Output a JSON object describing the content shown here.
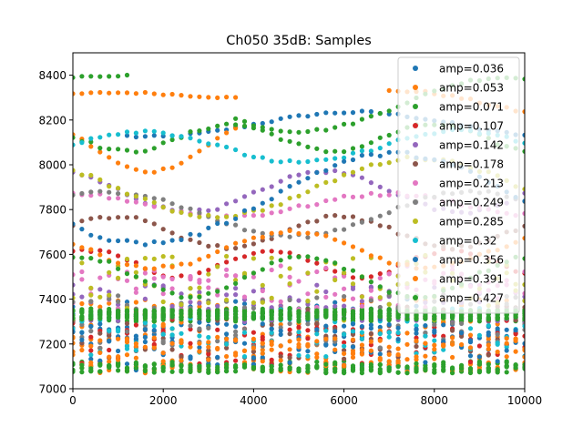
{
  "chart_data": {
    "type": "scatter",
    "title": "Ch050 35dB: Samples",
    "xlabel": "",
    "ylabel": "",
    "xlim": [
      0,
      10000
    ],
    "ylim": [
      7000,
      8500
    ],
    "xticks": [
      0,
      2000,
      4000,
      6000,
      8000,
      10000
    ],
    "yticks": [
      7000,
      7200,
      7400,
      7600,
      7800,
      8000,
      8200,
      8400
    ],
    "xtick_labels": [
      "0",
      "2000",
      "4000",
      "6000",
      "8000",
      "10000"
    ],
    "ytick_labels": [
      "7000",
      "7200",
      "7400",
      "7600",
      "7800",
      "8000",
      "8200",
      "8400"
    ],
    "grid": false,
    "legend_position": "top-right",
    "x_step": 200,
    "series": [
      {
        "name": "amp=0.036",
        "color": "#1f77b4",
        "tracks": [
          {
            "type": "wave",
            "base": 8180,
            "amp": 55,
            "period": 9000,
            "phase": 3.5,
            "xmin": 1200,
            "xmax": 10000,
            "noise": 6
          },
          {
            "type": "band",
            "center": 7290,
            "spread": 110,
            "n": 2
          }
        ]
      },
      {
        "name": "amp=0.053",
        "color": "#ff7f0e",
        "tracks": [
          {
            "type": "wave",
            "base": 8310,
            "amp": 12,
            "period": 6000,
            "phase": 0.5,
            "xmin": 0,
            "xmax": 3600,
            "noise": 4
          },
          {
            "type": "wave",
            "base": 8270,
            "amp": 60,
            "period": 8000,
            "phase": 2.2,
            "xmin": 7000,
            "xmax": 10000,
            "noise": 6
          },
          {
            "type": "wave",
            "base": 8080,
            "amp": 110,
            "period": 5000,
            "phase": 2.6,
            "xmin": 0,
            "xmax": 3600,
            "noise": 6
          },
          {
            "type": "band",
            "center": 7250,
            "spread": 150,
            "n": 3
          }
        ]
      },
      {
        "name": "amp=0.071",
        "color": "#2ca02c",
        "tracks": [
          {
            "type": "wave",
            "base": 8390,
            "amp": 10,
            "period": 6000,
            "phase": 0.0,
            "xmin": 0,
            "xmax": 1200,
            "noise": 4
          },
          {
            "type": "wave",
            "base": 8270,
            "amp": 120,
            "period": 9000,
            "phase": 1.2,
            "xmin": 3600,
            "xmax": 10000,
            "noise": 6
          },
          {
            "type": "wave",
            "base": 8120,
            "amp": 60,
            "period": 4500,
            "phase": 3.0,
            "xmin": 0,
            "xmax": 10000,
            "noise": 8
          },
          {
            "type": "band",
            "center": 7330,
            "spread": 30,
            "n": 6
          },
          {
            "type": "band",
            "center": 7100,
            "spread": 25,
            "n": 2
          }
        ]
      },
      {
        "name": "amp=0.107",
        "color": "#d62728",
        "tracks": [
          {
            "type": "wave",
            "base": 7560,
            "amp": 60,
            "period": 4000,
            "phase": 1.0,
            "xmin": 0,
            "xmax": 10000,
            "noise": 8
          },
          {
            "type": "band",
            "center": 7230,
            "spread": 130,
            "n": 2
          }
        ]
      },
      {
        "name": "amp=0.142",
        "color": "#9467bd",
        "tracks": [
          {
            "type": "wave",
            "base": 7880,
            "amp": 90,
            "period": 6000,
            "phase": 2.0,
            "xmin": 0,
            "xmax": 10000,
            "noise": 8
          },
          {
            "type": "band",
            "center": 7380,
            "spread": 90,
            "n": 2
          }
        ]
      },
      {
        "name": "amp=0.178",
        "color": "#8c564b",
        "tracks": [
          {
            "type": "wave",
            "base": 7700,
            "amp": 70,
            "period": 5000,
            "phase": 0.4,
            "xmin": 0,
            "xmax": 10000,
            "noise": 8
          },
          {
            "type": "band",
            "center": 7250,
            "spread": 120,
            "n": 2
          }
        ]
      },
      {
        "name": "amp=0.213",
        "color": "#e377c2",
        "tracks": [
          {
            "type": "wave",
            "base": 7820,
            "amp": 50,
            "period": 7000,
            "phase": 1.6,
            "xmin": 0,
            "xmax": 10000,
            "noise": 8
          },
          {
            "type": "band",
            "center": 7450,
            "spread": 100,
            "n": 2
          }
        ]
      },
      {
        "name": "amp=0.249",
        "color": "#7f7f7f",
        "tracks": [
          {
            "type": "wave",
            "base": 7780,
            "amp": 100,
            "period": 8000,
            "phase": 0.9,
            "xmin": 0,
            "xmax": 10000,
            "noise": 8
          },
          {
            "type": "band",
            "center": 7300,
            "spread": 120,
            "n": 2
          }
        ]
      },
      {
        "name": "amp=0.285",
        "color": "#bcbd22",
        "tracks": [
          {
            "type": "wave",
            "base": 7900,
            "amp": 130,
            "period": 9000,
            "phase": 2.5,
            "xmin": 0,
            "xmax": 10000,
            "noise": 8
          },
          {
            "type": "band",
            "center": 7450,
            "spread": 150,
            "n": 2
          }
        ]
      },
      {
        "name": "amp=0.32",
        "color": "#17becf",
        "tracks": [
          {
            "type": "wave",
            "base": 8080,
            "amp": 70,
            "period": 7000,
            "phase": 0.2,
            "xmin": 0,
            "xmax": 10000,
            "noise": 8
          },
          {
            "type": "band",
            "center": 7250,
            "spread": 110,
            "n": 2
          }
        ]
      },
      {
        "name": "amp=0.356",
        "color": "#1f77b4",
        "tracks": [
          {
            "type": "wave",
            "base": 7850,
            "amp": 200,
            "period": 11000,
            "phase": 3.8,
            "xmin": 0,
            "xmax": 10000,
            "noise": 10
          },
          {
            "type": "band",
            "center": 7200,
            "spread": 120,
            "n": 2
          }
        ]
      },
      {
        "name": "amp=0.391",
        "color": "#ff7f0e",
        "tracks": [
          {
            "type": "wave",
            "base": 7620,
            "amp": 80,
            "period": 6000,
            "phase": 2.8,
            "xmin": 0,
            "xmax": 10000,
            "noise": 8
          },
          {
            "type": "band",
            "center": 7150,
            "spread": 80,
            "n": 3
          }
        ]
      },
      {
        "name": "amp=0.427",
        "color": "#2ca02c",
        "tracks": [
          {
            "type": "wave",
            "base": 7500,
            "amp": 90,
            "period": 5000,
            "phase": 1.4,
            "xmin": 0,
            "xmax": 10000,
            "noise": 8
          },
          {
            "type": "band",
            "center": 7330,
            "spread": 20,
            "n": 8
          },
          {
            "type": "band",
            "center": 7090,
            "spread": 20,
            "n": 3
          }
        ]
      }
    ]
  }
}
